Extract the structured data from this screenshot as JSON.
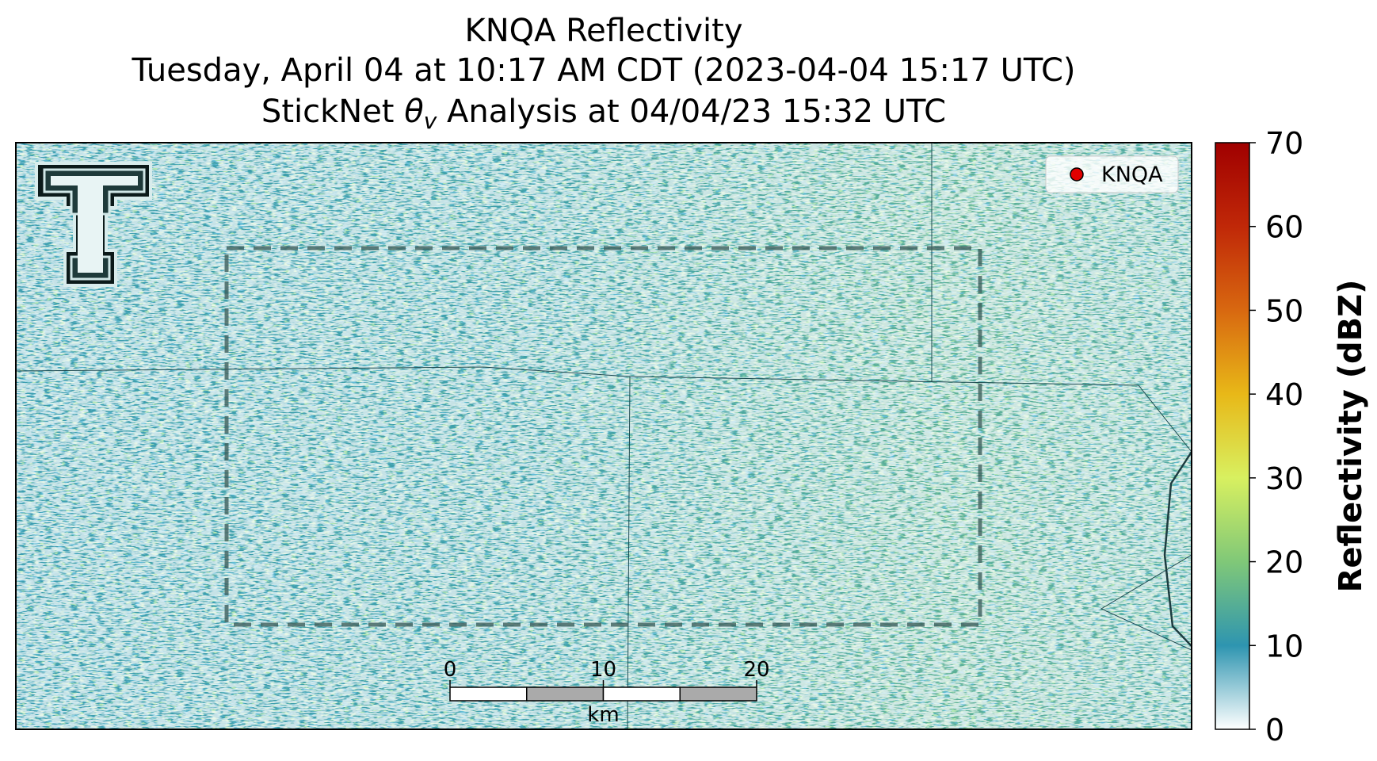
{
  "title": {
    "line1": "KNQA Reflectivity",
    "line2": "Tuesday, April 04 at 10:17 AM CDT (2023-04-04 15:17 UTC)",
    "line3": {
      "prefix": "StickNet ",
      "symbol": "θ",
      "subscript": "v",
      "suffix": " Analysis at 04/04/23 15:32 UTC"
    }
  },
  "legend": {
    "label": "KNQA",
    "marker_color": "#e00000",
    "corner": "upper right"
  },
  "scale_bar": {
    "ticks": [
      0,
      10,
      20
    ],
    "unit": "km"
  },
  "colorbar": {
    "label": "Reflectivity (dBZ)",
    "lim": [
      0,
      70
    ],
    "ticks": [
      0,
      10,
      20,
      30,
      40,
      50,
      60,
      70
    ],
    "colors": [
      "#ffffff",
      "#2e95b0",
      "#80c878",
      "#d8f060",
      "#e8b818",
      "#d86810",
      "#c02808",
      "#a00000"
    ]
  }
}
